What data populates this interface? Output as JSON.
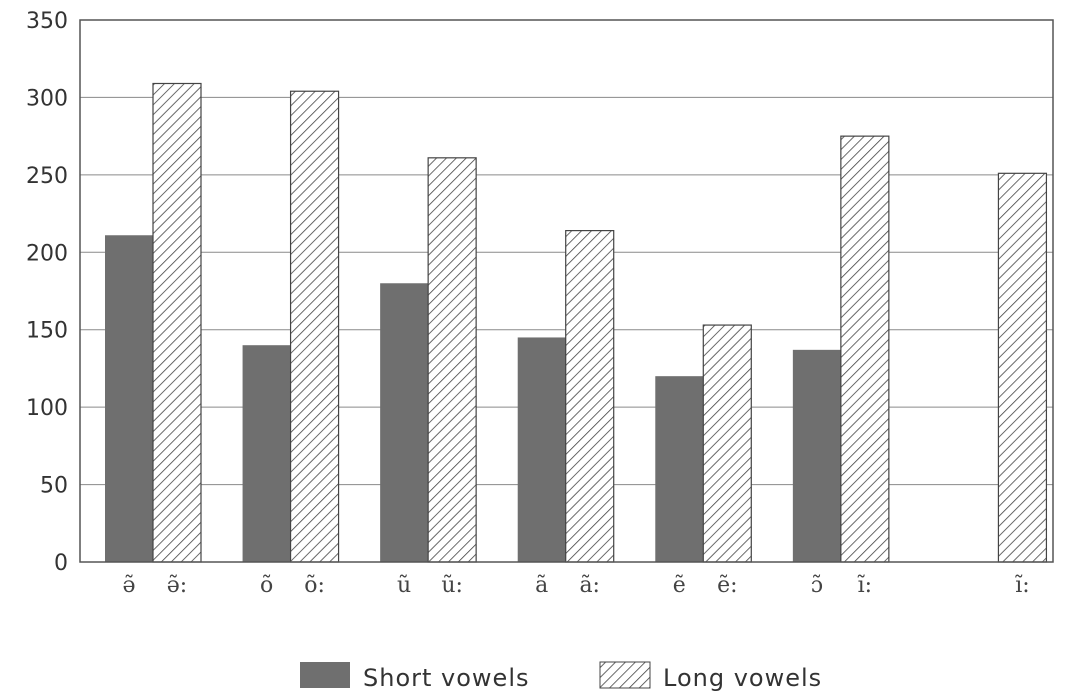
{
  "chart_data": {
    "type": "bar",
    "categories": [
      "ə̃",
      "õ",
      "ũ",
      "ã",
      "ẽ",
      "ɔ̃ / ĩ",
      "ĩ"
    ],
    "category_labels": [
      [
        "ə̃",
        "ə̃:"
      ],
      [
        "õ",
        "õ:"
      ],
      [
        "ũ",
        "ũ:"
      ],
      [
        "ã",
        "ã:"
      ],
      [
        "ẽ",
        "ẽ:"
      ],
      [
        "ɔ̃",
        "ĩ:"
      ],
      [
        "",
        "ĩ:"
      ]
    ],
    "series": [
      {
        "name": "Short vowels",
        "pattern": "solid-gray",
        "values": [
          211,
          140,
          180,
          145,
          120,
          137,
          null
        ]
      },
      {
        "name": "Long vowels",
        "pattern": "diagonal-hatch",
        "values": [
          309,
          304,
          261,
          214,
          153,
          275,
          251
        ]
      }
    ],
    "yticks": [
      0,
      50,
      100,
      150,
      200,
      250,
      300,
      350
    ],
    "ylim": [
      0,
      350
    ],
    "grid": true,
    "legend_position": "bottom-center",
    "colors": {
      "short": "#6f6f6f",
      "hatch": "#444444",
      "frame": "#555555",
      "grid": "#8a8a8a"
    }
  }
}
